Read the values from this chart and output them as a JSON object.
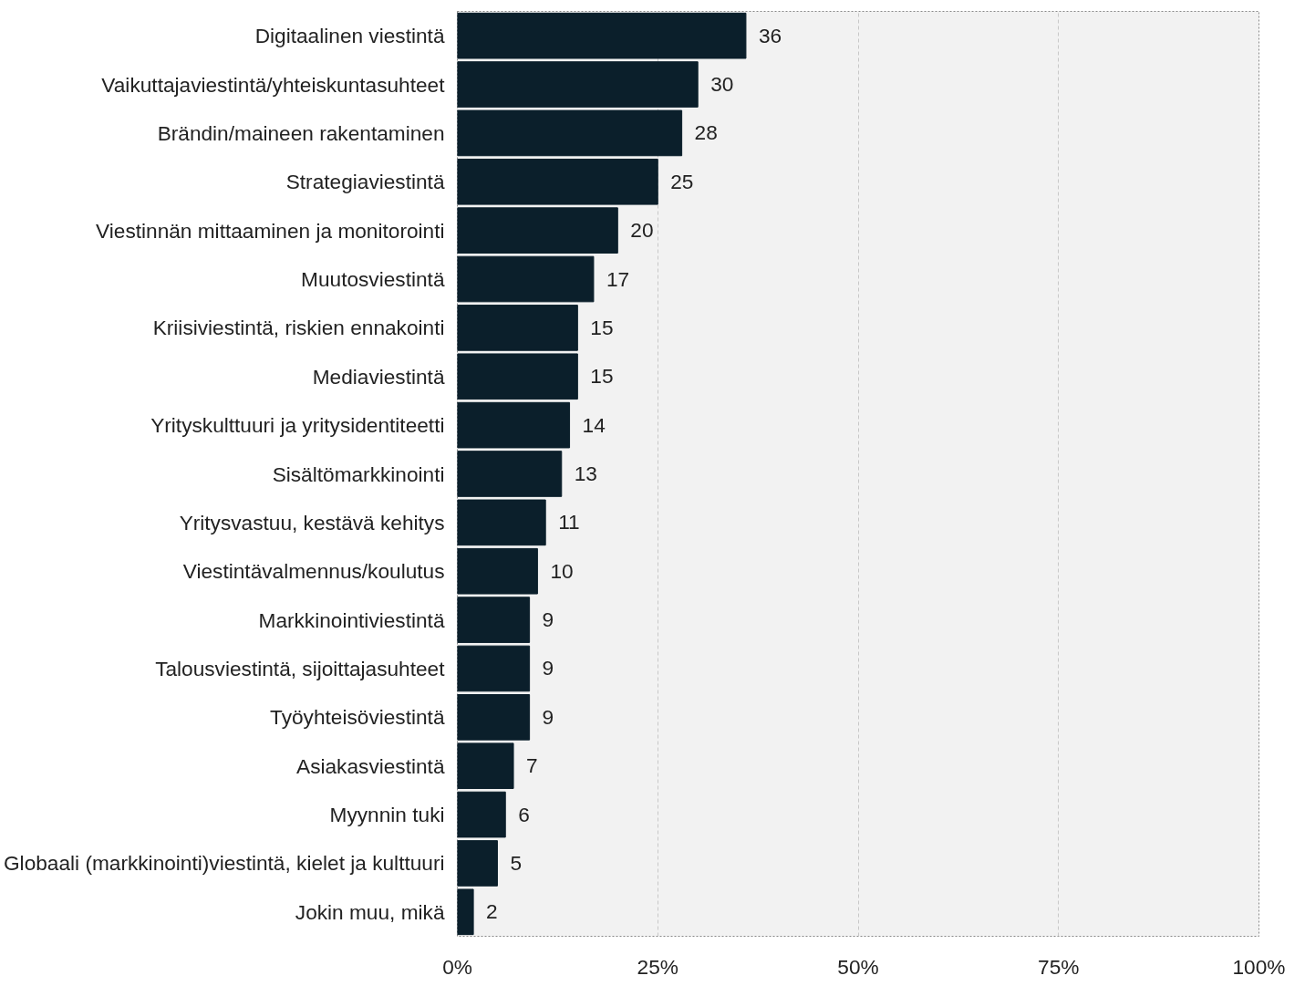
{
  "chart_data": {
    "type": "bar",
    "orientation": "horizontal",
    "categories": [
      "Digitaalinen viestintä",
      "Vaikuttajaviestintä/yhteiskuntasuhteet",
      "Brändin/maineen rakentaminen",
      "Strategiaviestintä",
      "Viestinnän mittaaminen ja monitorointi",
      "Muutosviestintä",
      "Kriisiviestintä, riskien ennakointi",
      "Mediaviestintä",
      "Yrityskulttuuri ja yritysidentiteetti",
      "Sisältömarkkinointi",
      "Yritysvastuu, kestävä kehitys",
      "Viestintävalmennus/koulutus",
      "Markkinointiviestintä",
      "Talousviestintä, sijoittajasuhteet",
      "Työyhteisöviestintä",
      "Asiakasviestintä",
      "Myynnin tuki",
      "Globaali (markkinointi)viestintä, kielet ja kulttuuri",
      "Jokin muu, mikä"
    ],
    "values": [
      36,
      30,
      28,
      25,
      20,
      17,
      15,
      15,
      14,
      13,
      11,
      10,
      9,
      9,
      9,
      7,
      6,
      5,
      2
    ],
    "color": "#0b1f2b",
    "data_labels": true,
    "xlim": [
      0,
      100
    ],
    "xticks": [
      {
        "value": 0,
        "label": "0%"
      },
      {
        "value": 25,
        "label": "25%"
      },
      {
        "value": 50,
        "label": "50%"
      },
      {
        "value": 75,
        "label": "75%"
      },
      {
        "value": 100,
        "label": "100%"
      }
    ],
    "grid": "x"
  }
}
